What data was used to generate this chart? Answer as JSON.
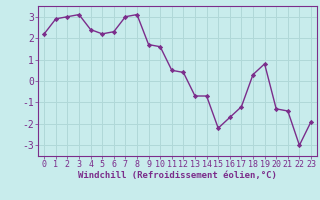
{
  "x": [
    0,
    1,
    2,
    3,
    4,
    5,
    6,
    7,
    8,
    9,
    10,
    11,
    12,
    13,
    14,
    15,
    16,
    17,
    18,
    19,
    20,
    21,
    22,
    23
  ],
  "y": [
    2.2,
    2.9,
    3.0,
    3.1,
    2.4,
    2.2,
    2.3,
    3.0,
    3.1,
    1.7,
    1.6,
    0.5,
    0.4,
    -0.7,
    -0.7,
    -2.2,
    -1.7,
    -1.2,
    0.3,
    0.8,
    -1.3,
    -1.4,
    -3.0,
    -1.9
  ],
  "line_color": "#7b2d8b",
  "marker": "D",
  "marker_size": 2.2,
  "bg_color": "#c8ecec",
  "grid_color": "#b0d8d8",
  "xlabel": "Windchill (Refroidissement éolien,°C)",
  "xlabel_color": "#7b2d8b",
  "tick_color": "#7b2d8b",
  "ylim": [
    -3.5,
    3.5
  ],
  "yticks": [
    -3,
    -2,
    -1,
    0,
    1,
    2,
    3
  ],
  "line_width": 1.0,
  "font_size": 6.0,
  "xlabel_font_size": 6.5
}
